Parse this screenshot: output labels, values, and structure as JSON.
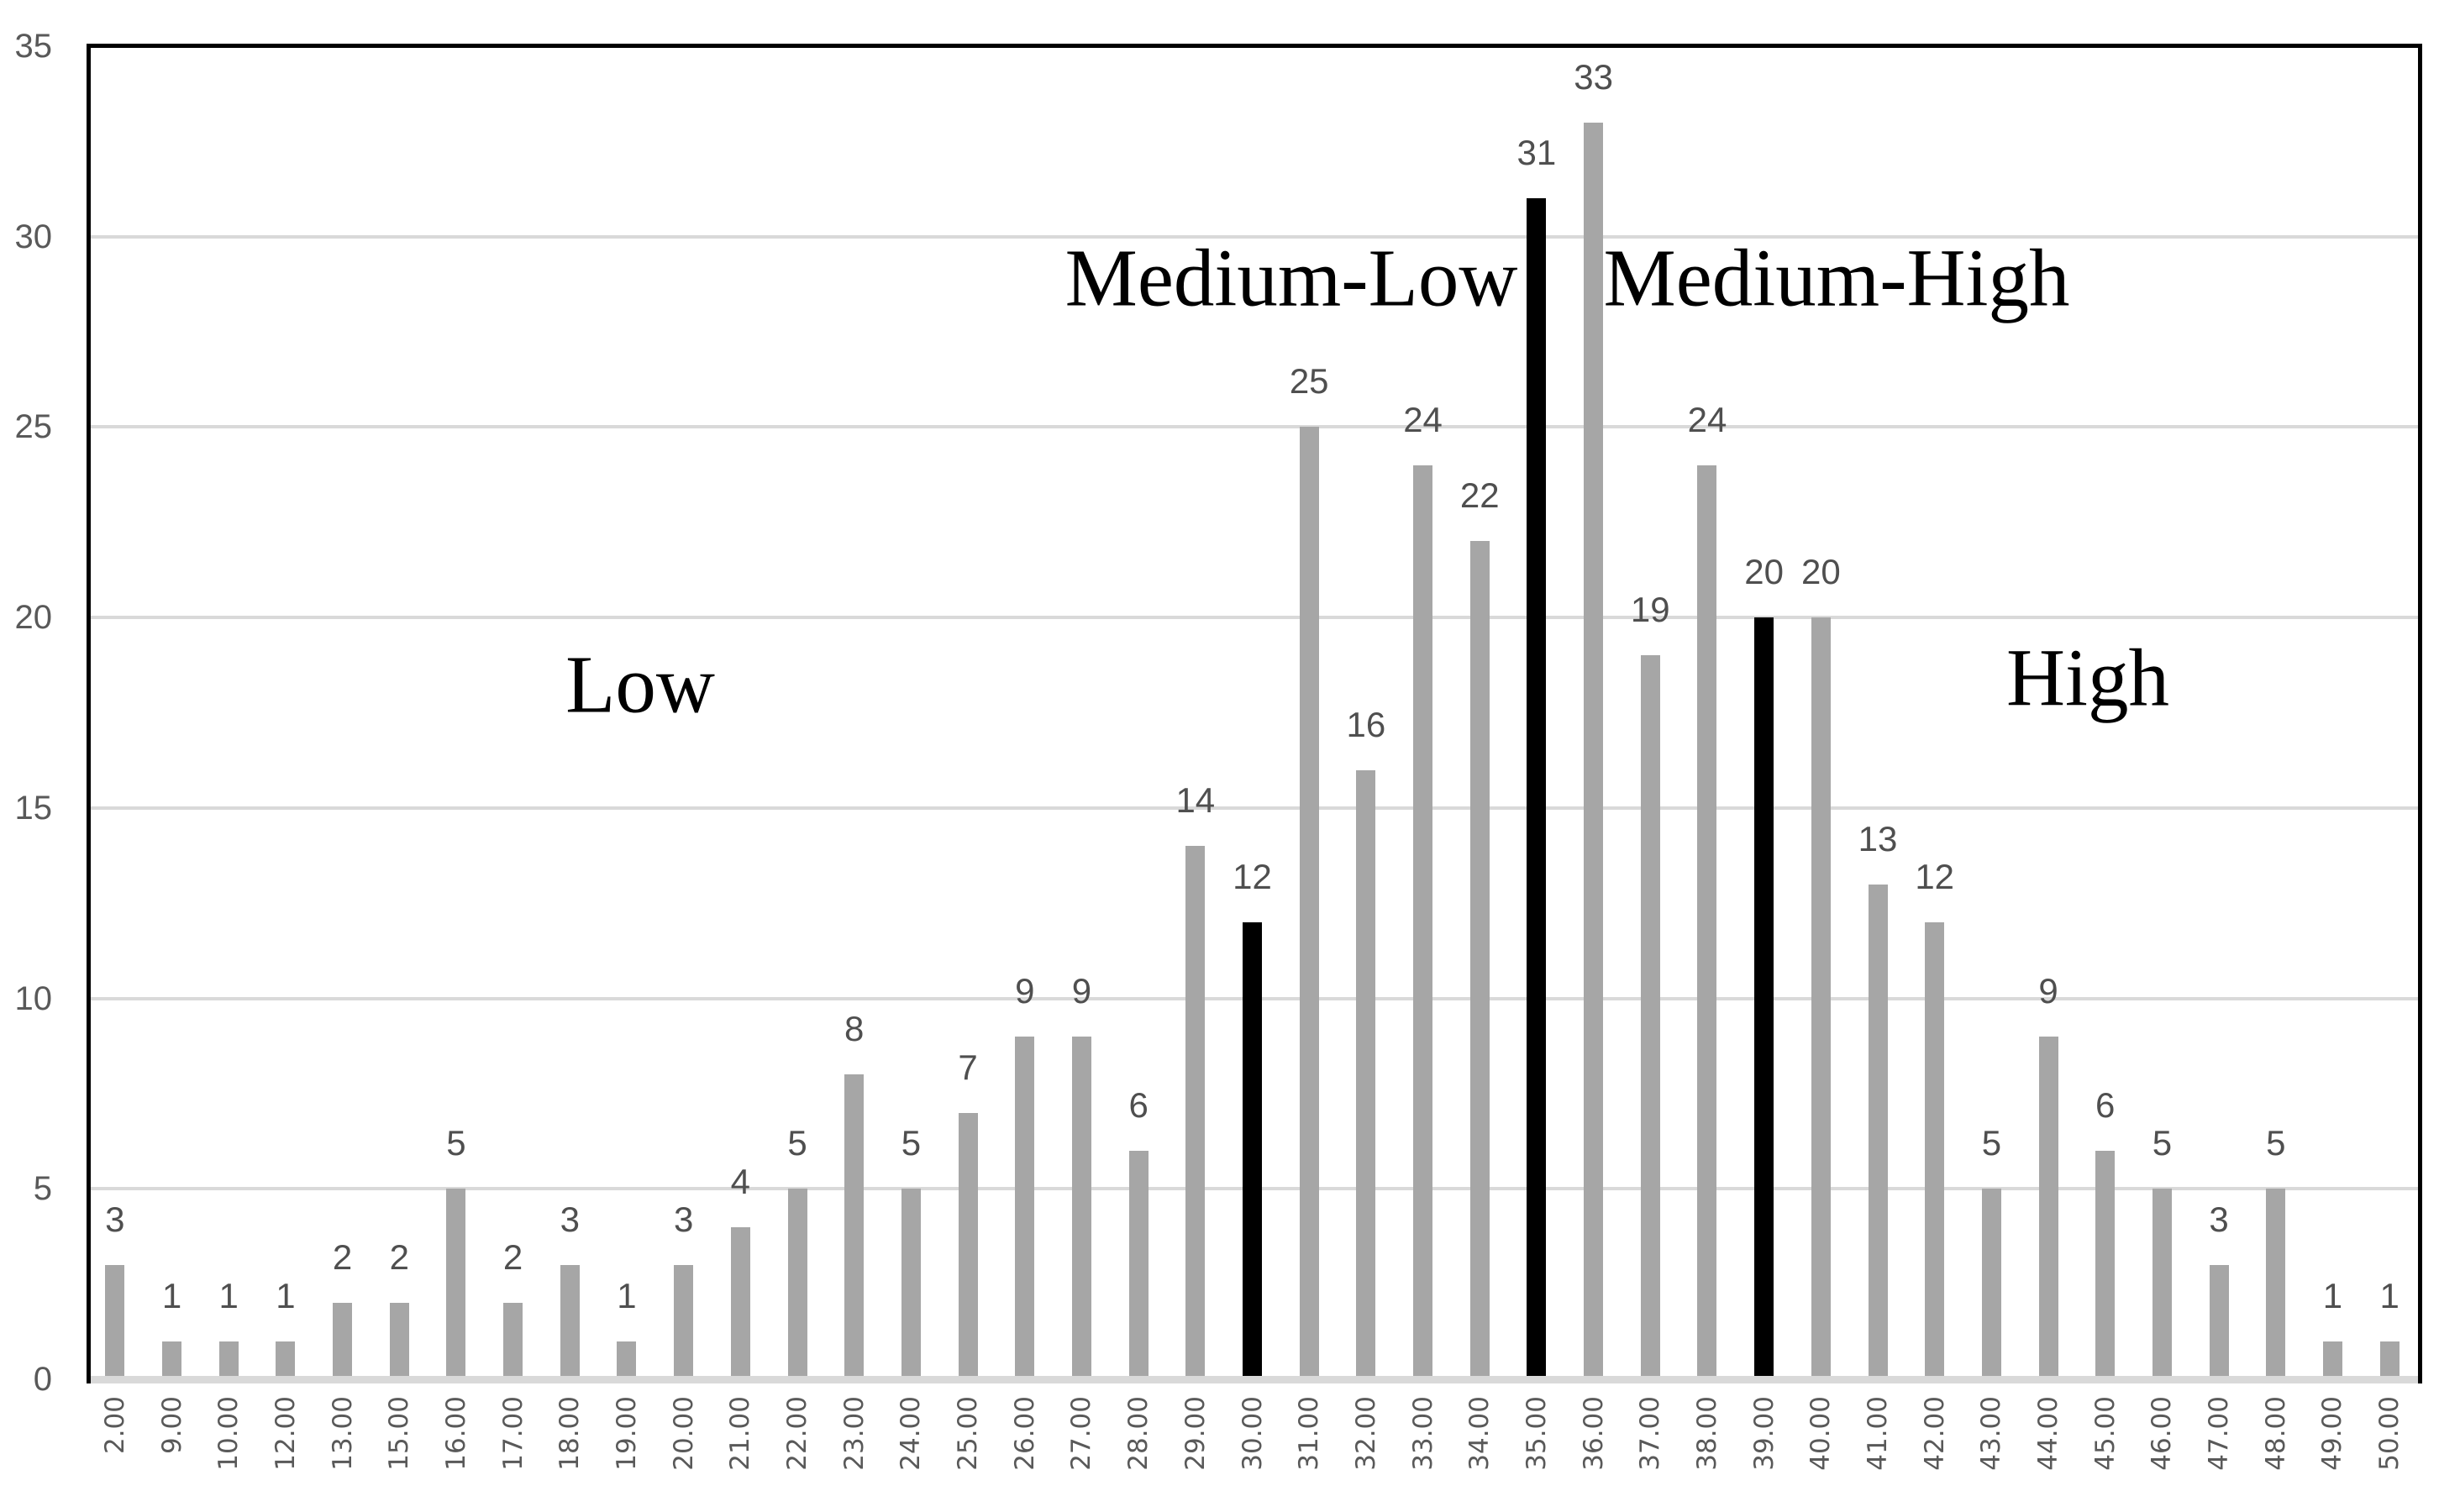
{
  "chart_data": {
    "type": "bar",
    "title": "",
    "xlabel": "",
    "ylabel": "",
    "categories": [
      "2.00",
      "9.00",
      "10.00",
      "12.00",
      "13.00",
      "15.00",
      "16.00",
      "17.00",
      "18.00",
      "19.00",
      "20.00",
      "21.00",
      "22.00",
      "23.00",
      "24.00",
      "25.00",
      "26.00",
      "27.00",
      "28.00",
      "29.00",
      "30.00",
      "31.00",
      "32.00",
      "33.00",
      "34.00",
      "35.00",
      "36.00",
      "37.00",
      "38.00",
      "39.00",
      "40.00",
      "41.00",
      "42.00",
      "43.00",
      "44.00",
      "45.00",
      "46.00",
      "47.00",
      "48.00",
      "49.00",
      "50.00"
    ],
    "values": [
      3,
      1,
      1,
      1,
      2,
      2,
      5,
      2,
      3,
      1,
      3,
      4,
      5,
      8,
      5,
      7,
      9,
      9,
      6,
      14,
      12,
      25,
      16,
      24,
      22,
      31,
      33,
      19,
      24,
      20,
      20,
      13,
      12,
      5,
      9,
      6,
      5,
      3,
      5,
      1,
      1
    ],
    "highlighted_categories": [
      "30.00",
      "35.00",
      "39.00"
    ],
    "data_labels_shown": true,
    "y_ticks": [
      0,
      5,
      10,
      15,
      20,
      25,
      30,
      35
    ],
    "ylim": [
      0,
      35
    ],
    "grid": "horizontal",
    "legend": "none",
    "bar_color": "#a6a6a6",
    "highlight_color": "#000000",
    "gridline_color": "#d9d9d9",
    "border_color": "#000000",
    "label_color": "#4f4f4f",
    "tick_color": "#595959",
    "annotations": [
      {
        "text": "Low",
        "x": 762,
        "y": 815
      },
      {
        "text": "Medium-Low",
        "x": 1537,
        "y": 331
      },
      {
        "text": "Medium-High",
        "x": 2186,
        "y": 331
      },
      {
        "text": "High",
        "x": 2485,
        "y": 807
      }
    ]
  }
}
